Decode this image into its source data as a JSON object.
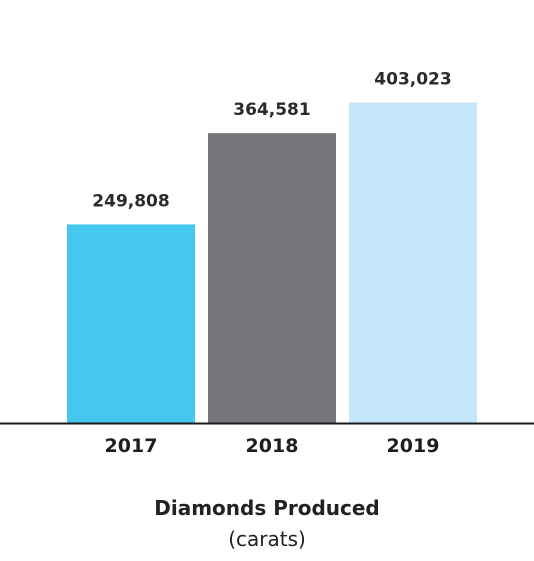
{
  "chart_data": {
    "type": "bar",
    "categories": [
      "2017",
      "2018",
      "2019"
    ],
    "values": [
      249808,
      364581,
      403023
    ],
    "value_labels": [
      "249,808",
      "364,581",
      "403,023"
    ],
    "colors": [
      "#45c8ee",
      "#76777b",
      "#c5e6f8"
    ],
    "axis_color": "#1a1a1a",
    "title": "Diamonds Produced",
    "subtitle": "(carats)"
  }
}
